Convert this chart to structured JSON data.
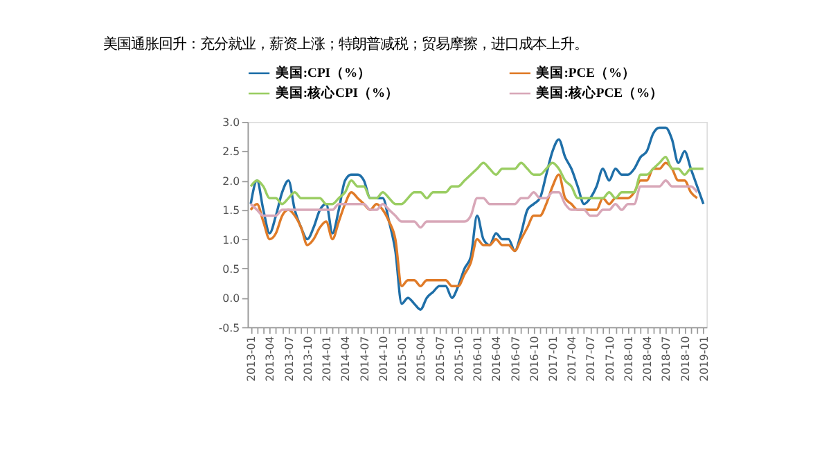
{
  "chart_data": {
    "type": "line",
    "title": "美国通胀回升：充分就业，薪资上涨；特朗普减税；贸易摩擦，进口成本上升。",
    "categories": [
      "2013-01",
      null,
      null,
      "2013-04",
      null,
      null,
      "2013-07",
      null,
      null,
      "2013-10",
      null,
      null,
      "2014-01",
      null,
      null,
      "2014-04",
      null,
      null,
      "2014-07",
      null,
      null,
      "2014-10",
      null,
      null,
      "2015-01",
      null,
      null,
      "2015-04",
      null,
      null,
      "2015-07",
      null,
      null,
      "2015-10",
      null,
      null,
      "2016-01",
      null,
      null,
      "2016-04",
      null,
      null,
      "2016-07",
      null,
      null,
      "2016-10",
      null,
      null,
      "2017-01",
      null,
      null,
      "2017-04",
      null,
      null,
      "2017-07",
      null,
      null,
      "2017-10",
      null,
      null,
      "2018-01",
      null,
      null,
      "2018-04",
      null,
      null,
      "2018-07",
      null,
      null,
      "2018-10",
      null,
      null,
      "2019-01"
    ],
    "series": [
      {
        "name": "美国:CPI（%）",
        "color": "#1f6fa8",
        "values": [
          1.6,
          2.0,
          1.5,
          1.1,
          1.4,
          1.8,
          2.0,
          1.5,
          1.2,
          1.0,
          1.2,
          1.5,
          1.6,
          1.1,
          1.5,
          2.0,
          2.1,
          2.1,
          2.0,
          1.7,
          1.7,
          1.7,
          1.3,
          0.8,
          -0.1,
          0.0,
          -0.1,
          -0.2,
          0.0,
          0.1,
          0.2,
          0.2,
          0.0,
          0.2,
          0.5,
          0.7,
          1.4,
          1.0,
          0.9,
          1.1,
          1.0,
          1.0,
          0.8,
          1.1,
          1.5,
          1.6,
          1.7,
          2.1,
          2.5,
          2.7,
          2.4,
          2.2,
          1.9,
          1.6,
          1.7,
          1.9,
          2.2,
          2.0,
          2.2,
          2.1,
          2.1,
          2.2,
          2.4,
          2.5,
          2.8,
          2.9,
          2.9,
          2.7,
          2.3,
          2.5,
          2.2,
          1.9,
          1.6
        ]
      },
      {
        "name": "美国:PCE（%）",
        "color": "#e07b28",
        "values": [
          1.5,
          1.6,
          1.3,
          1.0,
          1.1,
          1.4,
          1.5,
          1.4,
          1.2,
          0.9,
          1.0,
          1.2,
          1.3,
          1.0,
          1.3,
          1.6,
          1.8,
          1.7,
          1.6,
          1.5,
          1.6,
          1.5,
          1.3,
          1.0,
          0.2,
          0.3,
          0.3,
          0.2,
          0.3,
          0.3,
          0.3,
          0.3,
          0.2,
          0.2,
          0.4,
          0.6,
          1.0,
          0.9,
          0.9,
          1.0,
          0.9,
          0.9,
          0.8,
          1.0,
          1.2,
          1.4,
          1.4,
          1.6,
          1.9,
          2.1,
          1.7,
          1.6,
          1.5,
          1.5,
          1.5,
          1.5,
          1.7,
          1.6,
          1.7,
          1.7,
          1.7,
          1.8,
          2.0,
          2.0,
          2.2,
          2.2,
          2.3,
          2.2,
          2.0,
          2.0,
          1.8,
          1.7,
          null
        ]
      },
      {
        "name": "美国:核心CPI（%）",
        "color": "#9acd62",
        "values": [
          1.9,
          2.0,
          1.9,
          1.7,
          1.7,
          1.6,
          1.7,
          1.8,
          1.7,
          1.7,
          1.7,
          1.7,
          1.6,
          1.6,
          1.7,
          1.8,
          2.0,
          1.9,
          1.9,
          1.7,
          1.7,
          1.8,
          1.7,
          1.6,
          1.6,
          1.7,
          1.8,
          1.8,
          1.7,
          1.8,
          1.8,
          1.8,
          1.9,
          1.9,
          2.0,
          2.1,
          2.2,
          2.3,
          2.2,
          2.1,
          2.2,
          2.2,
          2.2,
          2.3,
          2.2,
          2.1,
          2.1,
          2.2,
          2.3,
          2.2,
          2.0,
          1.9,
          1.7,
          1.7,
          1.7,
          1.7,
          1.7,
          1.8,
          1.7,
          1.8,
          1.8,
          1.8,
          2.1,
          2.1,
          2.2,
          2.3,
          2.4,
          2.2,
          2.2,
          2.1,
          2.2,
          2.2,
          2.2
        ]
      },
      {
        "name": "美国:核心PCE（%）",
        "color": "#d8a7b8",
        "values": [
          1.6,
          1.5,
          1.4,
          1.4,
          1.4,
          1.5,
          1.5,
          1.5,
          1.5,
          1.5,
          1.5,
          1.5,
          1.5,
          1.5,
          1.6,
          1.6,
          1.6,
          1.6,
          1.6,
          1.5,
          1.5,
          1.6,
          1.5,
          1.4,
          1.3,
          1.3,
          1.3,
          1.2,
          1.3,
          1.3,
          1.3,
          1.3,
          1.3,
          1.3,
          1.3,
          1.4,
          1.7,
          1.7,
          1.6,
          1.6,
          1.6,
          1.6,
          1.6,
          1.7,
          1.7,
          1.8,
          1.7,
          1.7,
          1.8,
          1.8,
          1.6,
          1.5,
          1.5,
          1.5,
          1.4,
          1.4,
          1.5,
          1.5,
          1.6,
          1.5,
          1.6,
          1.6,
          1.9,
          1.9,
          1.9,
          1.9,
          2.0,
          1.9,
          1.9,
          1.9,
          1.9,
          1.8,
          null
        ]
      }
    ],
    "ylim": [
      -0.5,
      3.0
    ],
    "yticks": [
      -0.5,
      {
        "value": 0,
        "label": "0.0"
      },
      0.5,
      {
        "value": 1,
        "label": "1.0"
      },
      1.5,
      {
        "value": 2,
        "label": "2.0"
      },
      2.5,
      {
        "value": 3,
        "label": "3.0"
      }
    ],
    "grid": false,
    "legend": "top",
    "marker": "none",
    "line_style": "solid"
  }
}
